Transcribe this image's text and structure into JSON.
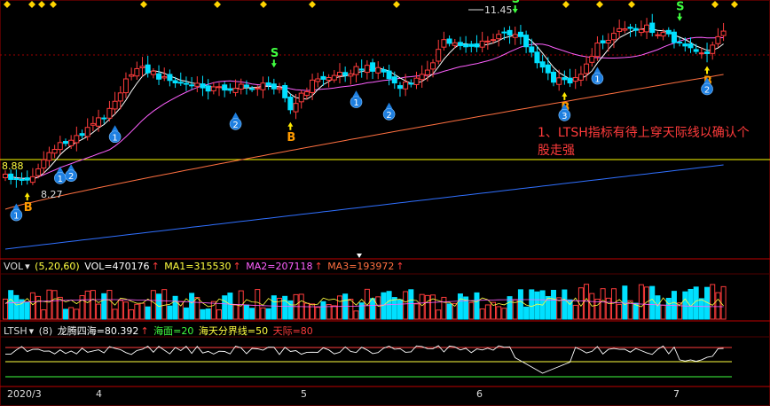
{
  "chart_data": {
    "type": "candlestick",
    "price_labels": {
      "high": "11.45",
      "low": "8.27",
      "left_level": "8.88"
    },
    "signals": {
      "buy_letter": "B",
      "sell_letter": "S",
      "arrows": [
        {
          "i": 2,
          "n": "1"
        },
        {
          "i": 10,
          "n": "1"
        },
        {
          "i": 12,
          "n": "2"
        },
        {
          "i": 20,
          "n": "1"
        },
        {
          "i": 42,
          "n": "2"
        },
        {
          "i": 64,
          "n": "1"
        },
        {
          "i": 70,
          "n": "2"
        },
        {
          "i": 102,
          "n": "3"
        },
        {
          "i": 108,
          "n": "1"
        },
        {
          "i": 128,
          "n": "2"
        }
      ],
      "buys": [
        4,
        52,
        102,
        128
      ],
      "sells": [
        49,
        93,
        123
      ]
    },
    "annotation": "1、LTSH指标有待上穿天际线以确认个股走强",
    "volume_panel": {
      "name": "VOL",
      "params": "(5,20,60)",
      "vol": "VOL=470176",
      "ma1": "MA1=315530",
      "ma2": "MA2=207118",
      "ma3": "MA3=193972"
    },
    "ltsh_panel": {
      "name": "LTSH",
      "params": "(8)",
      "value": "龙腾四海=80.392",
      "sea": "海面=20",
      "divide": "海天分界线=50",
      "sky": "天际=80"
    },
    "x_labels": [
      "2020/3",
      "4",
      "5",
      "6",
      "7"
    ],
    "colors": {
      "up": "#ff3c3c",
      "down": "#00e0ff",
      "ma1": "#ffffff",
      "ma2": "#ff60ff",
      "ma3": "#ff7040",
      "ma4": "#3070ff",
      "level": "#ffff00",
      "axis": "#c00000"
    }
  }
}
